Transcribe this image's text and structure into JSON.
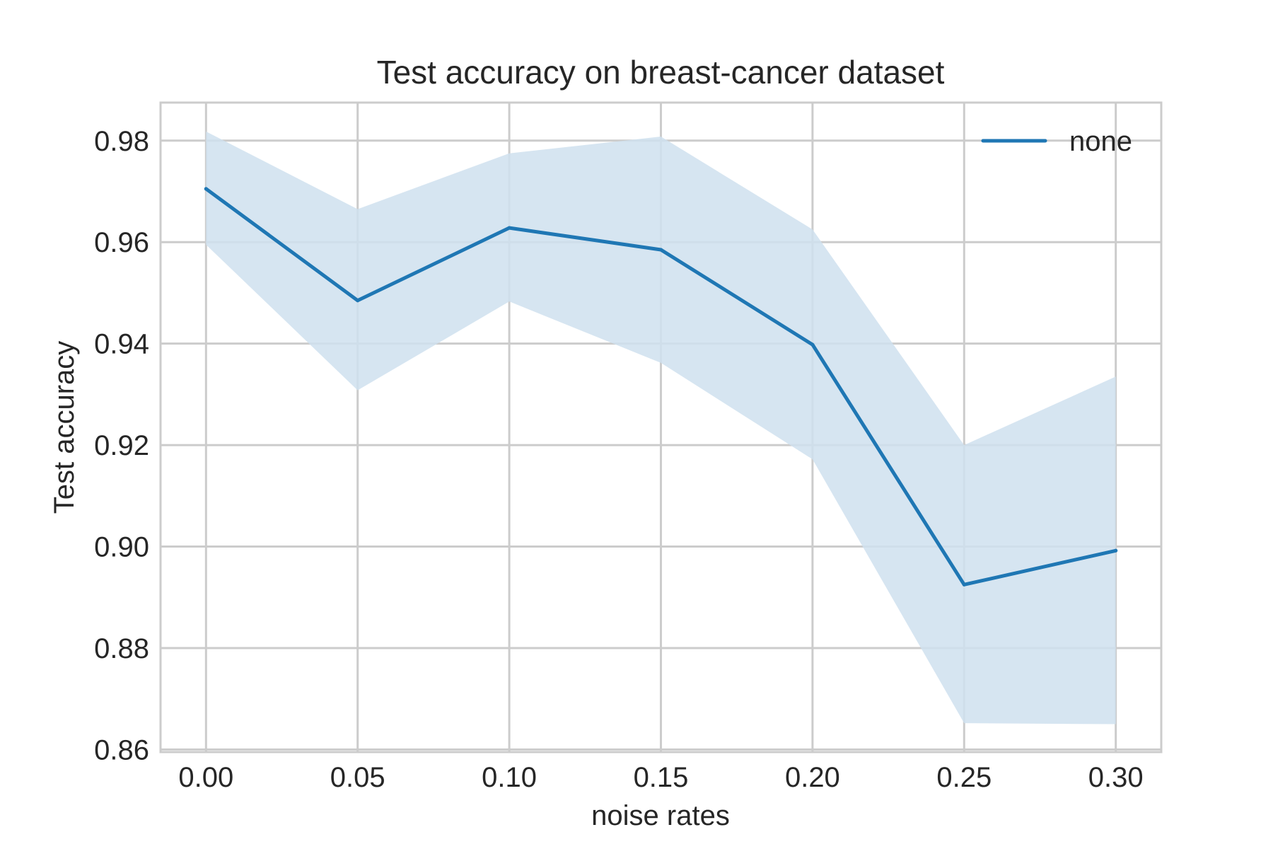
{
  "chart_data": {
    "type": "line",
    "title": "Test accuracy on breast-cancer dataset",
    "xlabel": "noise rates",
    "ylabel": "Test accuracy",
    "x": [
      0.0,
      0.05,
      0.1,
      0.15,
      0.2,
      0.25,
      0.3
    ],
    "x_tick_labels": [
      "0.00",
      "0.05",
      "0.10",
      "0.15",
      "0.20",
      "0.25",
      "0.30"
    ],
    "y_ticks": [
      0.86,
      0.88,
      0.9,
      0.92,
      0.94,
      0.96,
      0.98
    ],
    "y_tick_labels": [
      "0.86",
      "0.88",
      "0.90",
      "0.92",
      "0.94",
      "0.96",
      "0.98"
    ],
    "xlim": [
      -0.015,
      0.315
    ],
    "ylim": [
      0.8595,
      0.9875
    ],
    "grid": true,
    "legend_position": "top-right",
    "series": [
      {
        "name": "none",
        "color": "#1f77b4",
        "values": [
          0.9705,
          0.9485,
          0.9628,
          0.9585,
          0.9398,
          0.8925,
          0.8992
        ],
        "band_upper": [
          0.9818,
          0.9665,
          0.9775,
          0.9808,
          0.9625,
          0.92,
          0.9335
        ],
        "band_lower": [
          0.9595,
          0.9308,
          0.9483,
          0.9362,
          0.9172,
          0.8652,
          0.865
        ],
        "band_color": "#cfe1ee"
      }
    ]
  }
}
